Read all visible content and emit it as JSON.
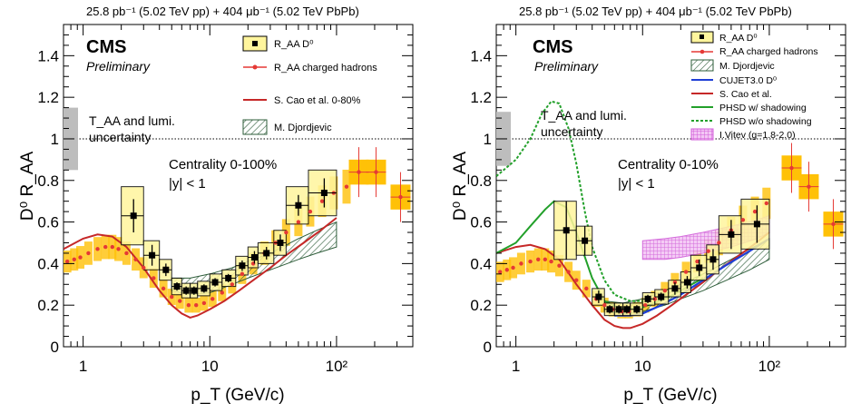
{
  "chart_data": [
    {
      "type": "scatter",
      "header": "25.8 pb⁻¹ (5.02 TeV pp) + 404 μb⁻¹ (5.02 TeV PbPb)",
      "experiment": "CMS",
      "status": "Preliminary",
      "xlabel": "p_T (GeV/c)",
      "ylabel": "D⁰ R_AA",
      "xlog": true,
      "xlim": [
        0.7,
        400
      ],
      "ylim": [
        0,
        1.55
      ],
      "xticks": [
        "1",
        "10",
        "10²"
      ],
      "yticks": [
        "0",
        "0.2",
        "0.4",
        "0.6",
        "0.8",
        "1",
        "1.2",
        "1.4"
      ],
      "norm_label": [
        "T_AA and lumi.",
        "uncertainty"
      ],
      "centrality": "Centrality 0-100%",
      "rapidity": "|y| < 1",
      "legend": [
        "R_AA D⁰",
        "R_AA charged hadrons",
        "S. Cao et al. 0-80%",
        "M. Djordjevic"
      ],
      "d0": [
        {
          "pt": 2.5,
          "raa": 0.63,
          "err": 0.08,
          "sys": 0.14,
          "xlo": 2,
          "xhi": 3
        },
        {
          "pt": 3.5,
          "raa": 0.44,
          "err": 0.05,
          "sys": 0.07,
          "xlo": 3,
          "xhi": 4
        },
        {
          "pt": 4.5,
          "raa": 0.37,
          "err": 0.03,
          "sys": 0.05,
          "xlo": 4,
          "xhi": 5
        },
        {
          "pt": 5.5,
          "raa": 0.29,
          "err": 0.02,
          "sys": 0.04,
          "xlo": 5,
          "xhi": 6
        },
        {
          "pt": 6.5,
          "raa": 0.27,
          "err": 0.02,
          "sys": 0.035,
          "xlo": 6,
          "xhi": 7
        },
        {
          "pt": 7.5,
          "raa": 0.27,
          "err": 0.02,
          "sys": 0.035,
          "xlo": 7,
          "xhi": 8
        },
        {
          "pt": 9,
          "raa": 0.28,
          "err": 0.02,
          "sys": 0.035,
          "xlo": 8,
          "xhi": 10
        },
        {
          "pt": 11,
          "raa": 0.31,
          "err": 0.02,
          "sys": 0.04,
          "xlo": 10,
          "xhi": 12.5
        },
        {
          "pt": 14,
          "raa": 0.33,
          "err": 0.02,
          "sys": 0.04,
          "xlo": 12.5,
          "xhi": 16
        },
        {
          "pt": 18,
          "raa": 0.39,
          "err": 0.025,
          "sys": 0.045,
          "xlo": 16,
          "xhi": 20
        },
        {
          "pt": 22.5,
          "raa": 0.43,
          "err": 0.03,
          "sys": 0.05,
          "xlo": 20,
          "xhi": 24
        },
        {
          "pt": 28,
          "raa": 0.45,
          "err": 0.03,
          "sys": 0.05,
          "xlo": 24,
          "xhi": 32
        },
        {
          "pt": 36,
          "raa": 0.5,
          "err": 0.04,
          "sys": 0.06,
          "xlo": 32,
          "xhi": 40
        },
        {
          "pt": 50,
          "raa": 0.68,
          "err": 0.05,
          "sys": 0.09,
          "xlo": 40,
          "xhi": 60
        },
        {
          "pt": 80,
          "raa": 0.74,
          "err": 0.07,
          "sys": 0.11,
          "xlo": 60,
          "xhi": 100
        }
      ],
      "charged_hadrons": [
        {
          "pt": 0.75,
          "raa": 0.41
        },
        {
          "pt": 0.85,
          "raa": 0.42
        },
        {
          "pt": 0.95,
          "raa": 0.43
        },
        {
          "pt": 1.1,
          "raa": 0.45
        },
        {
          "pt": 1.3,
          "raa": 0.47
        },
        {
          "pt": 1.5,
          "raa": 0.48
        },
        {
          "pt": 1.7,
          "raa": 0.48
        },
        {
          "pt": 1.9,
          "raa": 0.47
        },
        {
          "pt": 2.2,
          "raa": 0.45
        },
        {
          "pt": 2.6,
          "raa": 0.42
        },
        {
          "pt": 3.0,
          "raa": 0.38
        },
        {
          "pt": 3.6,
          "raa": 0.33
        },
        {
          "pt": 4.3,
          "raa": 0.28
        },
        {
          "pt": 5.0,
          "raa": 0.24
        },
        {
          "pt": 5.8,
          "raa": 0.22
        },
        {
          "pt": 6.8,
          "raa": 0.2
        },
        {
          "pt": 7.8,
          "raa": 0.2
        },
        {
          "pt": 9,
          "raa": 0.21
        },
        {
          "pt": 10.5,
          "raa": 0.23
        },
        {
          "pt": 12.5,
          "raa": 0.26
        },
        {
          "pt": 15,
          "raa": 0.3
        },
        {
          "pt": 18,
          "raa": 0.35
        },
        {
          "pt": 22,
          "raa": 0.4
        },
        {
          "pt": 27,
          "raa": 0.45
        },
        {
          "pt": 33,
          "raa": 0.5
        },
        {
          "pt": 40,
          "raa": 0.55
        },
        {
          "pt": 50,
          "raa": 0.6
        },
        {
          "pt": 62,
          "raa": 0.65
        },
        {
          "pt": 77,
          "raa": 0.7
        },
        {
          "pt": 95,
          "raa": 0.74
        },
        {
          "pt": 120,
          "raa": 0.77
        },
        {
          "pt": 150,
          "raa": 0.84
        },
        {
          "pt": 205,
          "raa": 0.84
        },
        {
          "pt": 320,
          "raa": 0.72
        }
      ],
      "cao": [
        {
          "pt": 0.7,
          "raa": 0.47
        },
        {
          "pt": 1.0,
          "raa": 0.52
        },
        {
          "pt": 1.3,
          "raa": 0.54
        },
        {
          "pt": 1.7,
          "raa": 0.53
        },
        {
          "pt": 2.2,
          "raa": 0.48
        },
        {
          "pt": 3,
          "raa": 0.38
        },
        {
          "pt": 4,
          "raa": 0.27
        },
        {
          "pt": 5,
          "raa": 0.2
        },
        {
          "pt": 6,
          "raa": 0.16
        },
        {
          "pt": 7,
          "raa": 0.14
        },
        {
          "pt": 8,
          "raa": 0.15
        },
        {
          "pt": 10,
          "raa": 0.18
        },
        {
          "pt": 13,
          "raa": 0.22
        },
        {
          "pt": 17,
          "raa": 0.27
        },
        {
          "pt": 22,
          "raa": 0.32
        },
        {
          "pt": 30,
          "raa": 0.38
        },
        {
          "pt": 40,
          "raa": 0.44
        },
        {
          "pt": 55,
          "raa": 0.5
        },
        {
          "pt": 75,
          "raa": 0.56
        },
        {
          "pt": 100,
          "raa": 0.62
        }
      ],
      "djordjevic_upper": [
        {
          "pt": 5,
          "raa": 0.33
        },
        {
          "pt": 7,
          "raa": 0.33
        },
        {
          "pt": 10,
          "raa": 0.35
        },
        {
          "pt": 15,
          "raa": 0.38
        },
        {
          "pt": 20,
          "raa": 0.41
        },
        {
          "pt": 30,
          "raa": 0.45
        },
        {
          "pt": 50,
          "raa": 0.52
        },
        {
          "pt": 70,
          "raa": 0.56
        },
        {
          "pt": 100,
          "raa": 0.6
        }
      ],
      "djordjevic_lower": [
        {
          "pt": 5,
          "raa": 0.27
        },
        {
          "pt": 7,
          "raa": 0.25
        },
        {
          "pt": 10,
          "raa": 0.26
        },
        {
          "pt": 15,
          "raa": 0.3
        },
        {
          "pt": 20,
          "raa": 0.33
        },
        {
          "pt": 30,
          "raa": 0.37
        },
        {
          "pt": 50,
          "raa": 0.42
        },
        {
          "pt": 70,
          "raa": 0.45
        },
        {
          "pt": 100,
          "raa": 0.48
        }
      ],
      "norm_box": {
        "ylo": 0.85,
        "yhi": 1.15
      }
    },
    {
      "type": "scatter",
      "header": "25.8 pb⁻¹ (5.02 TeV pp) + 404 μb⁻¹ (5.02 TeV PbPb)",
      "experiment": "CMS",
      "status": "Preliminary",
      "xlabel": "p_T (GeV/c)",
      "ylabel": "D⁰ R_AA",
      "xlog": true,
      "xlim": [
        0.7,
        400
      ],
      "ylim": [
        0,
        1.55
      ],
      "xticks": [
        "1",
        "10",
        "10²"
      ],
      "yticks": [
        "0",
        "0.2",
        "0.4",
        "0.6",
        "0.8",
        "1",
        "1.2",
        "1.4"
      ],
      "norm_label": [
        "T_AA and lumi.",
        "uncertainty"
      ],
      "centrality": "Centrality 0-10%",
      "rapidity": "|y| < 1",
      "legend": [
        "R_AA D⁰",
        "R_AA charged hadrons",
        "M. Djordjevic",
        "CUJET3.0 D⁰",
        "S. Cao et al.",
        "PHSD w/ shadowing",
        "PHSD w/o shadowing",
        "I.Vitev (g=1.8-2.0)"
      ],
      "d0": [
        {
          "pt": 2.5,
          "raa": 0.56,
          "err": 0.14,
          "sys": 0.14,
          "xlo": 2,
          "xhi": 3
        },
        {
          "pt": 3.5,
          "raa": 0.51,
          "err": 0.07,
          "sys": 0.07,
          "xlo": 3,
          "xhi": 4
        },
        {
          "pt": 4.5,
          "raa": 0.24,
          "err": 0.03,
          "sys": 0.04,
          "xlo": 4,
          "xhi": 5
        },
        {
          "pt": 5.5,
          "raa": 0.18,
          "err": 0.02,
          "sys": 0.03,
          "xlo": 5,
          "xhi": 6
        },
        {
          "pt": 6.5,
          "raa": 0.18,
          "err": 0.02,
          "sys": 0.03,
          "xlo": 6,
          "xhi": 7
        },
        {
          "pt": 7.5,
          "raa": 0.18,
          "err": 0.02,
          "sys": 0.03,
          "xlo": 7,
          "xhi": 8
        },
        {
          "pt": 9,
          "raa": 0.18,
          "err": 0.02,
          "sys": 0.03,
          "xlo": 8,
          "xhi": 10
        },
        {
          "pt": 11,
          "raa": 0.23,
          "err": 0.02,
          "sys": 0.03,
          "xlo": 10,
          "xhi": 12.5
        },
        {
          "pt": 14,
          "raa": 0.24,
          "err": 0.02,
          "sys": 0.035,
          "xlo": 12.5,
          "xhi": 16
        },
        {
          "pt": 18,
          "raa": 0.28,
          "err": 0.03,
          "sys": 0.04,
          "xlo": 16,
          "xhi": 20
        },
        {
          "pt": 22.5,
          "raa": 0.31,
          "err": 0.03,
          "sys": 0.05,
          "xlo": 20,
          "xhi": 24
        },
        {
          "pt": 28,
          "raa": 0.38,
          "err": 0.04,
          "sys": 0.06,
          "xlo": 24,
          "xhi": 32
        },
        {
          "pt": 36,
          "raa": 0.42,
          "err": 0.05,
          "sys": 0.07,
          "xlo": 32,
          "xhi": 40
        },
        {
          "pt": 50,
          "raa": 0.54,
          "err": 0.07,
          "sys": 0.09,
          "xlo": 40,
          "xhi": 60
        },
        {
          "pt": 80,
          "raa": 0.59,
          "err": 0.09,
          "sys": 0.12,
          "xlo": 60,
          "xhi": 100
        }
      ],
      "charged_hadrons": [
        {
          "pt": 0.75,
          "raa": 0.36
        },
        {
          "pt": 0.85,
          "raa": 0.37
        },
        {
          "pt": 0.95,
          "raa": 0.38
        },
        {
          "pt": 1.1,
          "raa": 0.4
        },
        {
          "pt": 1.3,
          "raa": 0.41
        },
        {
          "pt": 1.5,
          "raa": 0.42
        },
        {
          "pt": 1.7,
          "raa": 0.42
        },
        {
          "pt": 1.9,
          "raa": 0.41
        },
        {
          "pt": 2.2,
          "raa": 0.39
        },
        {
          "pt": 2.6,
          "raa": 0.36
        },
        {
          "pt": 3.0,
          "raa": 0.32
        },
        {
          "pt": 3.6,
          "raa": 0.28
        },
        {
          "pt": 4.3,
          "raa": 0.23
        },
        {
          "pt": 5.0,
          "raa": 0.2
        },
        {
          "pt": 5.8,
          "raa": 0.18
        },
        {
          "pt": 6.8,
          "raa": 0.17
        },
        {
          "pt": 7.8,
          "raa": 0.17
        },
        {
          "pt": 9,
          "raa": 0.18
        },
        {
          "pt": 10.5,
          "raa": 0.2
        },
        {
          "pt": 12.5,
          "raa": 0.23
        },
        {
          "pt": 15,
          "raa": 0.27
        },
        {
          "pt": 18,
          "raa": 0.31
        },
        {
          "pt": 22,
          "raa": 0.36
        },
        {
          "pt": 27,
          "raa": 0.41
        },
        {
          "pt": 33,
          "raa": 0.46
        },
        {
          "pt": 40,
          "raa": 0.5
        },
        {
          "pt": 50,
          "raa": 0.56
        },
        {
          "pt": 62,
          "raa": 0.61
        },
        {
          "pt": 77,
          "raa": 0.65
        },
        {
          "pt": 95,
          "raa": 0.69
        },
        {
          "pt": 150,
          "raa": 0.86
        },
        {
          "pt": 205,
          "raa": 0.77
        },
        {
          "pt": 320,
          "raa": 0.59
        }
      ],
      "cao": [
        {
          "pt": 0.7,
          "raa": 0.45
        },
        {
          "pt": 1.0,
          "raa": 0.48
        },
        {
          "pt": 1.3,
          "raa": 0.49
        },
        {
          "pt": 1.7,
          "raa": 0.47
        },
        {
          "pt": 2.2,
          "raa": 0.42
        },
        {
          "pt": 3,
          "raa": 0.3
        },
        {
          "pt": 4,
          "raa": 0.2
        },
        {
          "pt": 5,
          "raa": 0.13
        },
        {
          "pt": 6,
          "raa": 0.1
        },
        {
          "pt": 7,
          "raa": 0.09
        },
        {
          "pt": 8,
          "raa": 0.09
        },
        {
          "pt": 10,
          "raa": 0.11
        },
        {
          "pt": 13,
          "raa": 0.15
        },
        {
          "pt": 17,
          "raa": 0.2
        },
        {
          "pt": 22,
          "raa": 0.25
        },
        {
          "pt": 30,
          "raa": 0.31
        },
        {
          "pt": 40,
          "raa": 0.37
        },
        {
          "pt": 55,
          "raa": 0.43
        },
        {
          "pt": 75,
          "raa": 0.49
        },
        {
          "pt": 100,
          "raa": 0.55
        }
      ],
      "djordjevic_upper": [
        {
          "pt": 5,
          "raa": 0.22
        },
        {
          "pt": 7,
          "raa": 0.21
        },
        {
          "pt": 10,
          "raa": 0.23
        },
        {
          "pt": 15,
          "raa": 0.27
        },
        {
          "pt": 20,
          "raa": 0.3
        },
        {
          "pt": 30,
          "raa": 0.35
        },
        {
          "pt": 50,
          "raa": 0.42
        },
        {
          "pt": 70,
          "raa": 0.47
        },
        {
          "pt": 100,
          "raa": 0.52
        }
      ],
      "djordjevic_lower": [
        {
          "pt": 5,
          "raa": 0.17
        },
        {
          "pt": 7,
          "raa": 0.16
        },
        {
          "pt": 10,
          "raa": 0.17
        },
        {
          "pt": 15,
          "raa": 0.2
        },
        {
          "pt": 20,
          "raa": 0.23
        },
        {
          "pt": 30,
          "raa": 0.27
        },
        {
          "pt": 50,
          "raa": 0.33
        },
        {
          "pt": 70,
          "raa": 0.37
        },
        {
          "pt": 100,
          "raa": 0.42
        }
      ],
      "cujet": [
        {
          "pt": 6,
          "raa": 0.15
        },
        {
          "pt": 8,
          "raa": 0.15
        },
        {
          "pt": 10,
          "raa": 0.16
        },
        {
          "pt": 14,
          "raa": 0.2
        },
        {
          "pt": 20,
          "raa": 0.25
        },
        {
          "pt": 30,
          "raa": 0.32
        },
        {
          "pt": 45,
          "raa": 0.39
        },
        {
          "pt": 70,
          "raa": 0.46
        },
        {
          "pt": 100,
          "raa": 0.52
        }
      ],
      "phsd_shadow": [
        {
          "pt": 0.7,
          "raa": 0.45
        },
        {
          "pt": 1.0,
          "raa": 0.5
        },
        {
          "pt": 1.3,
          "raa": 0.58
        },
        {
          "pt": 1.7,
          "raa": 0.66
        },
        {
          "pt": 2.0,
          "raa": 0.7
        },
        {
          "pt": 2.5,
          "raa": 0.67
        },
        {
          "pt": 3,
          "raa": 0.55
        },
        {
          "pt": 4,
          "raa": 0.33
        },
        {
          "pt": 5,
          "raa": 0.22
        },
        {
          "pt": 7,
          "raa": 0.18
        },
        {
          "pt": 10,
          "raa": 0.19
        },
        {
          "pt": 15,
          "raa": 0.23
        },
        {
          "pt": 20,
          "raa": 0.27
        },
        {
          "pt": 30,
          "raa": 0.33
        }
      ],
      "phsd_noshadow": [
        {
          "pt": 0.7,
          "raa": 0.82
        },
        {
          "pt": 1.0,
          "raa": 0.9
        },
        {
          "pt": 1.3,
          "raa": 1.0
        },
        {
          "pt": 1.6,
          "raa": 1.12
        },
        {
          "pt": 1.9,
          "raa": 1.18
        },
        {
          "pt": 2.2,
          "raa": 1.17
        },
        {
          "pt": 2.6,
          "raa": 1.05
        },
        {
          "pt": 3,
          "raa": 0.88
        },
        {
          "pt": 3.5,
          "raa": 0.65
        },
        {
          "pt": 4,
          "raa": 0.48
        },
        {
          "pt": 5,
          "raa": 0.32
        },
        {
          "pt": 6,
          "raa": 0.25
        },
        {
          "pt": 8,
          "raa": 0.22
        },
        {
          "pt": 10,
          "raa": 0.22
        },
        {
          "pt": 15,
          "raa": 0.25
        },
        {
          "pt": 20,
          "raa": 0.29
        },
        {
          "pt": 30,
          "raa": 0.35
        }
      ],
      "vitev_upper": [
        {
          "pt": 10,
          "raa": 0.51
        },
        {
          "pt": 15,
          "raa": 0.52
        },
        {
          "pt": 20,
          "raa": 0.53
        },
        {
          "pt": 30,
          "raa": 0.55
        },
        {
          "pt": 50,
          "raa": 0.58
        },
        {
          "pt": 80,
          "raa": 0.61
        },
        {
          "pt": 100,
          "raa": 0.63
        }
      ],
      "vitev_lower": [
        {
          "pt": 10,
          "raa": 0.42
        },
        {
          "pt": 15,
          "raa": 0.42
        },
        {
          "pt": 20,
          "raa": 0.43
        },
        {
          "pt": 30,
          "raa": 0.45
        },
        {
          "pt": 50,
          "raa": 0.48
        },
        {
          "pt": 80,
          "raa": 0.52
        },
        {
          "pt": 100,
          "raa": 0.55
        }
      ],
      "norm_box": {
        "ylo": 0.87,
        "yhi": 1.13
      }
    }
  ],
  "colors": {
    "sys_box_fill": "#fff59d",
    "ch_band": "#ffc107",
    "ch_marker": "#e53935",
    "cao": "#c62828",
    "djordjevic": "#2e5d3a",
    "cujet": "#1f3fd6",
    "phsd": "#22a02a",
    "vitev": "#d05cd8",
    "norm_box": "#bdbdbd"
  }
}
